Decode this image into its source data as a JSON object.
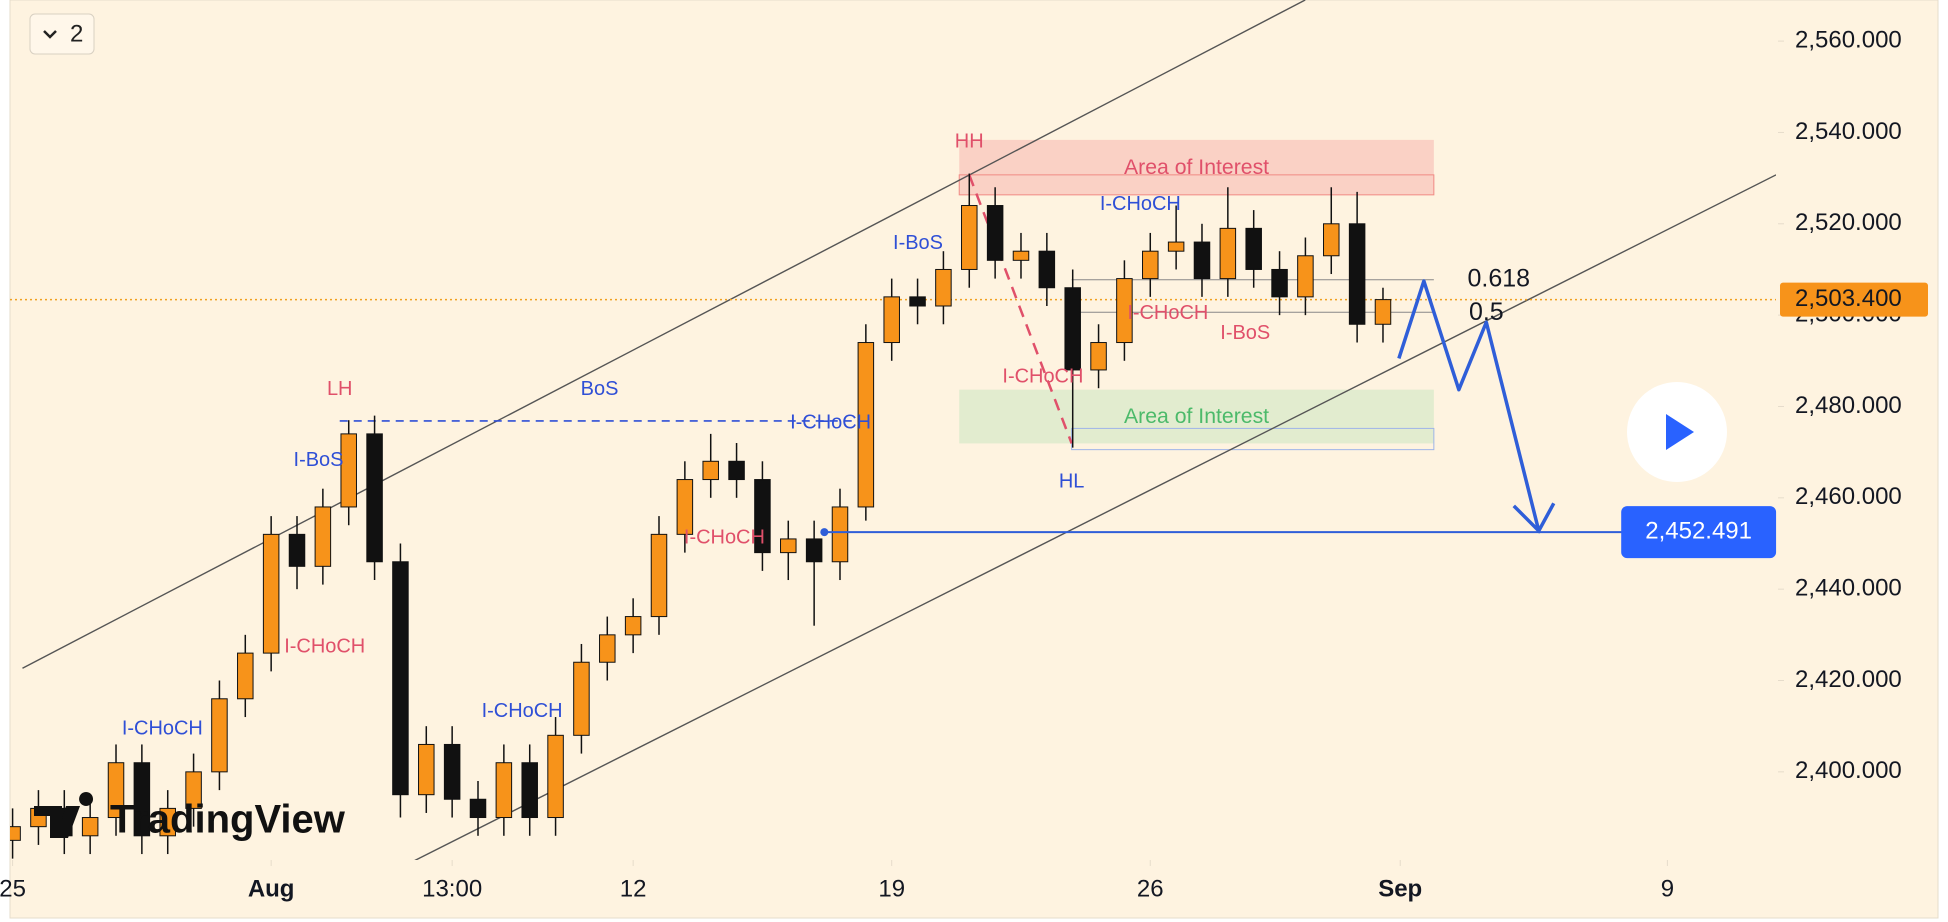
{
  "chart_data": {
    "type": "candlestick",
    "toolbar_count": "2",
    "watermark": "TradingView",
    "x": [
      0,
      3,
      6,
      9,
      12,
      15,
      18,
      21,
      24,
      27,
      30,
      33,
      36,
      39,
      42,
      45,
      48,
      51,
      54,
      57,
      60,
      63,
      66,
      69,
      72,
      75,
      78,
      81,
      84,
      87,
      90,
      93,
      96,
      99,
      102,
      105,
      108,
      111,
      114,
      117,
      120,
      123,
      126,
      129,
      132,
      135,
      138,
      141,
      144,
      147,
      150,
      153,
      156,
      159
    ],
    "open": [
      2385,
      2388,
      2392,
      2386,
      2390,
      2402,
      2386,
      2392,
      2400,
      2416,
      2426,
      2452,
      2445,
      2458,
      2474,
      2446,
      2395,
      2406,
      2394,
      2390,
      2402,
      2390,
      2408,
      2424,
      2430,
      2434,
      2452,
      2464,
      2468,
      2464,
      2448,
      2451,
      2446,
      2458,
      2494,
      2504,
      2502,
      2510,
      2524,
      2512,
      2514,
      2506,
      2488,
      2494,
      2508,
      2514,
      2516,
      2508,
      2519,
      2510,
      2504,
      2513,
      2520,
      2498
    ],
    "high": [
      2392,
      2396,
      2396,
      2394,
      2406,
      2406,
      2396,
      2404,
      2420,
      2430,
      2456,
      2456,
      2462,
      2477,
      2478,
      2450,
      2410,
      2410,
      2398,
      2406,
      2406,
      2412,
      2428,
      2434,
      2438,
      2456,
      2468,
      2474,
      2472,
      2468,
      2455,
      2455,
      2462,
      2498,
      2508,
      2508,
      2514,
      2531,
      2528,
      2518,
      2518,
      2510,
      2498,
      2512,
      2518,
      2524,
      2520,
      2528,
      2523,
      2514,
      2517,
      2528,
      2527,
      2506
    ],
    "low": [
      2381,
      2384,
      2382,
      2382,
      2386,
      2382,
      2382,
      2388,
      2396,
      2412,
      2422,
      2440,
      2441,
      2454,
      2442,
      2390,
      2391,
      2390,
      2386,
      2386,
      2386,
      2386,
      2404,
      2420,
      2426,
      2430,
      2448,
      2460,
      2460,
      2444,
      2442,
      2432,
      2442,
      2455,
      2490,
      2498,
      2498,
      2506,
      2508,
      2508,
      2502,
      2471,
      2484,
      2490,
      2504,
      2510,
      2504,
      2504,
      2506,
      2500,
      2500,
      2509,
      2494,
      2494
    ],
    "close": [
      2388,
      2392,
      2386,
      2390,
      2402,
      2386,
      2392,
      2400,
      2416,
      2426,
      2452,
      2445,
      2458,
      2474,
      2446,
      2395,
      2406,
      2394,
      2390,
      2402,
      2390,
      2408,
      2424,
      2430,
      2434,
      2452,
      2464,
      2468,
      2464,
      2448,
      2451,
      2446,
      2458,
      2494,
      2504,
      2502,
      2510,
      2524,
      2512,
      2514,
      2506,
      2488,
      2494,
      2508,
      2514,
      2516,
      2508,
      2519,
      2510,
      2504,
      2513,
      2520,
      2498,
      2503.4
    ],
    "up_color": "#f7931a",
    "down_color": "#111111",
    "xlim": [
      -0.3,
      204.6
    ],
    "xticks": [
      {
        "value": 0,
        "label": "25"
      },
      {
        "value": 30,
        "label": "Aug"
      },
      {
        "value": 51,
        "label": "13:00"
      },
      {
        "value": 72,
        "label": "12"
      },
      {
        "value": 102,
        "label": "19"
      },
      {
        "value": 132,
        "label": "26"
      },
      {
        "value": 161,
        "label": "Sep"
      },
      {
        "value": 192,
        "label": "9"
      }
    ],
    "ylim": [
      2380.7,
      2569
    ],
    "yticks": [
      {
        "value": 2400,
        "label": "2,400.000"
      },
      {
        "value": 2420,
        "label": "2,420.000"
      },
      {
        "value": 2440,
        "label": "2,440.000"
      },
      {
        "value": 2460,
        "label": "2,460.000"
      },
      {
        "value": 2480,
        "label": "2,480.000"
      },
      {
        "value": 2500,
        "label": "2,500.000"
      },
      {
        "value": 2520,
        "label": "2,520.000"
      },
      {
        "value": 2540,
        "label": "2,540.000"
      },
      {
        "value": 2560,
        "label": "2,560.000"
      }
    ],
    "current_price": {
      "value": 2503.4,
      "label": "2,503.400"
    },
    "target_price": {
      "value": 2452.491,
      "label": "2,452.491"
    },
    "annotations": [
      "HH",
      "LH",
      "HL",
      "BoS",
      "I-BoS",
      "I-BoS",
      "I-CHoCH",
      "I-CHoCH",
      "I-BoS",
      "I-CHoCH",
      "I-CHoCH",
      "I-CHoCH",
      "I-CHoCH",
      "I-CHoCH",
      "I-CHoCH",
      "Area of Interest",
      "Area of Interest",
      "0.618",
      "0.5"
    ]
  }
}
